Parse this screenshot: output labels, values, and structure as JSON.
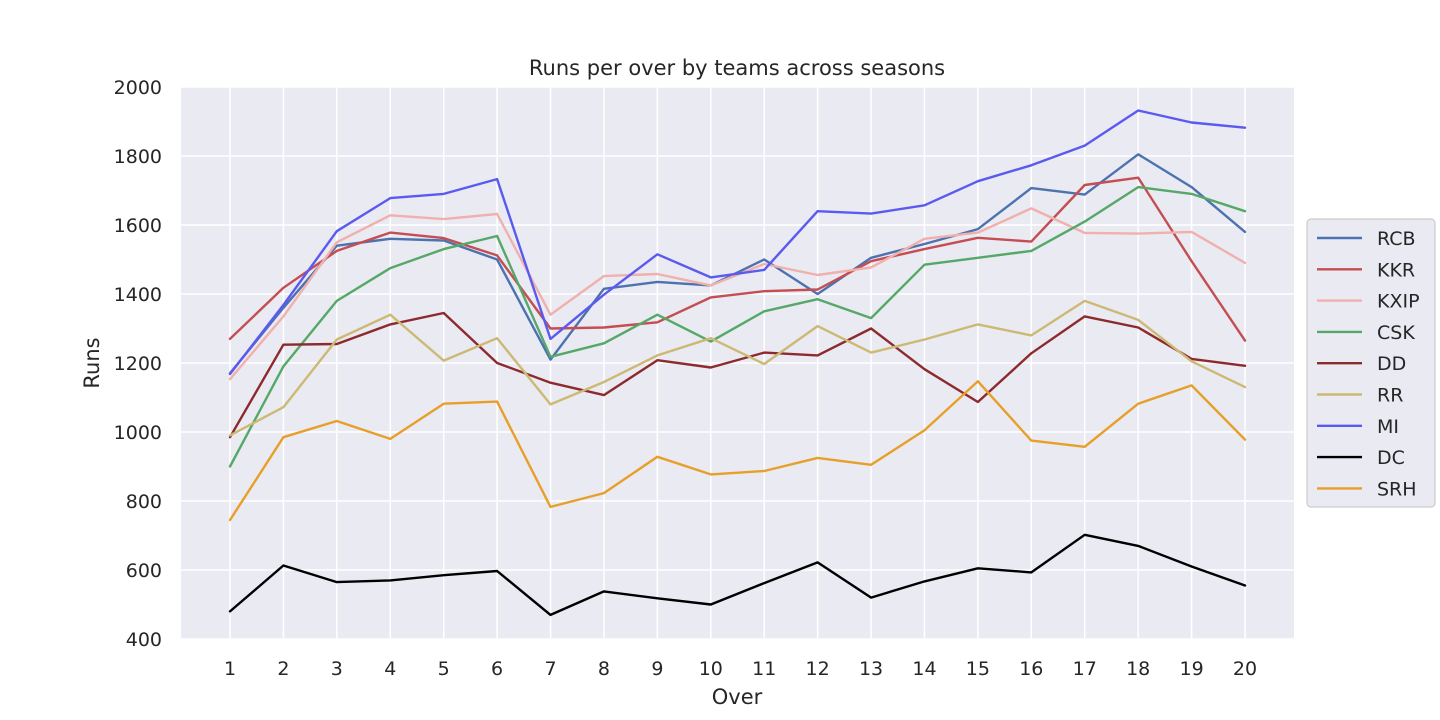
{
  "chart_data": {
    "type": "line",
    "title": "Runs per over by teams across seasons",
    "xlabel": "Over",
    "ylabel": "Runs",
    "x": [
      1,
      2,
      3,
      4,
      5,
      6,
      7,
      8,
      9,
      10,
      11,
      12,
      13,
      14,
      15,
      16,
      17,
      18,
      19,
      20
    ],
    "ylim": [
      400,
      2000
    ],
    "yticks": [
      400,
      600,
      800,
      1000,
      1200,
      1400,
      1600,
      1800,
      2000
    ],
    "grid": true,
    "legend": "right",
    "series": [
      {
        "name": "RCB",
        "color": "#4c72b0",
        "values": [
          1170,
          1360,
          1540,
          1560,
          1555,
          1500,
          1210,
          1415,
          1435,
          1425,
          1500,
          1400,
          1505,
          1545,
          1588,
          1707,
          1688,
          1805,
          1710,
          1580
        ]
      },
      {
        "name": "KKR",
        "color": "#c44e52",
        "values": [
          1270,
          1418,
          1525,
          1578,
          1562,
          1512,
          1300,
          1303,
          1318,
          1390,
          1408,
          1413,
          1495,
          1530,
          1563,
          1552,
          1716,
          1737,
          1495,
          1265
        ]
      },
      {
        "name": "KXIP",
        "color": "#f0b0ac",
        "values": [
          1153,
          1335,
          1550,
          1628,
          1617,
          1632,
          1340,
          1452,
          1458,
          1425,
          1487,
          1455,
          1477,
          1560,
          1578,
          1648,
          1577,
          1575,
          1580,
          1490
        ]
      },
      {
        "name": "CSK",
        "color": "#55a868",
        "values": [
          900,
          1190,
          1380,
          1475,
          1530,
          1568,
          1218,
          1257,
          1340,
          1262,
          1350,
          1385,
          1330,
          1485,
          1505,
          1525,
          1610,
          1710,
          1690,
          1640
        ]
      },
      {
        "name": "DD",
        "color": "#8c2a2e",
        "values": [
          985,
          1253,
          1255,
          1312,
          1345,
          1200,
          1143,
          1107,
          1208,
          1187,
          1230,
          1222,
          1300,
          1182,
          1087,
          1228,
          1335,
          1303,
          1212,
          1192
        ]
      },
      {
        "name": "RR",
        "color": "#ccb974",
        "values": [
          990,
          1072,
          1268,
          1340,
          1207,
          1272,
          1080,
          1145,
          1222,
          1272,
          1197,
          1307,
          1230,
          1268,
          1312,
          1280,
          1380,
          1325,
          1205,
          1130
        ]
      },
      {
        "name": "MI",
        "color": "#5a5af0",
        "values": [
          1168,
          1368,
          1582,
          1678,
          1690,
          1733,
          1270,
          1398,
          1515,
          1448,
          1470,
          1640,
          1633,
          1657,
          1727,
          1773,
          1830,
          1932,
          1897,
          1882
        ]
      },
      {
        "name": "DC",
        "color": "#000000",
        "values": [
          480,
          613,
          565,
          570,
          585,
          597,
          470,
          538,
          518,
          500,
          562,
          622,
          520,
          567,
          605,
          593,
          702,
          670,
          610,
          555
        ]
      },
      {
        "name": "SRH",
        "color": "#e89f2a",
        "values": [
          745,
          985,
          1032,
          980,
          1082,
          1088,
          783,
          823,
          928,
          877,
          887,
          925,
          905,
          1005,
          1147,
          975,
          957,
          1082,
          1135,
          978
        ]
      }
    ]
  }
}
